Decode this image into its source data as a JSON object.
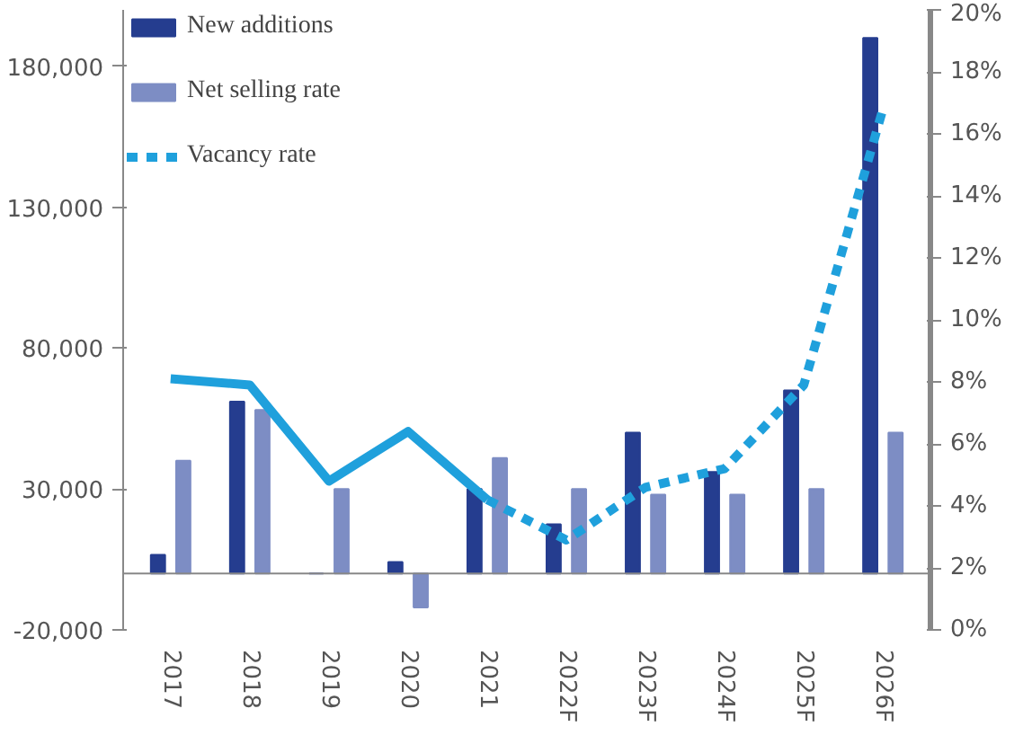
{
  "chart_data": {
    "type": "bar",
    "categories": [
      "2017",
      "2018",
      "2019",
      "2020",
      "2021",
      "2022F",
      "2023F",
      "2024F",
      "2025F",
      "2026F"
    ],
    "series": [
      {
        "name": "New additions",
        "color": "#253d8f",
        "values": [
          6600,
          61000,
          0,
          4100,
          30000,
          17500,
          50000,
          36000,
          65000,
          190000
        ]
      },
      {
        "name": "Net selling rate",
        "color": "#7d8dc4",
        "values": [
          40000,
          58000,
          30000,
          -12000,
          41000,
          30000,
          28000,
          28000,
          30000,
          50000
        ]
      },
      {
        "type": "line",
        "axis": "y2",
        "color": "#1fa0dc",
        "line_style": "solid",
        "values": [
          8.1,
          7.9,
          4.8,
          6.4,
          4.2,
          null,
          null,
          null,
          null,
          null
        ]
      },
      {
        "name": "Vacancy rate",
        "type": "line",
        "axis": "y2",
        "color": "#1fa0dc",
        "line_style": "dashed",
        "values": [
          null,
          null,
          null,
          null,
          4.2,
          2.9,
          4.6,
          5.2,
          7.9,
          16.8
        ]
      }
    ],
    "ylim": [
      -20000,
      200000
    ],
    "yticks": [
      {
        "value": -20000,
        "label": "-20,000"
      },
      {
        "value": 30000,
        "label": "30,000"
      },
      {
        "value": 80000,
        "label": "80,000"
      },
      {
        "value": 130000,
        "label": "130,000"
      },
      {
        "value": 180000,
        "label": "180,000"
      }
    ],
    "y2lim": [
      0,
      20
    ],
    "y2ticks": [
      {
        "value": 0,
        "label": "0%"
      },
      {
        "value": 2,
        "label": "2%"
      },
      {
        "value": 4,
        "label": "4%"
      },
      {
        "value": 6,
        "label": "6%"
      },
      {
        "value": 8,
        "label": "8%"
      },
      {
        "value": 10,
        "label": "10%"
      },
      {
        "value": 12,
        "label": "12%"
      },
      {
        "value": 14,
        "label": "14%"
      },
      {
        "value": 16,
        "label": "16%"
      },
      {
        "value": 18,
        "label": "18%"
      },
      {
        "value": 20,
        "label": "20%"
      }
    ],
    "grid": false,
    "legend": "top left"
  }
}
